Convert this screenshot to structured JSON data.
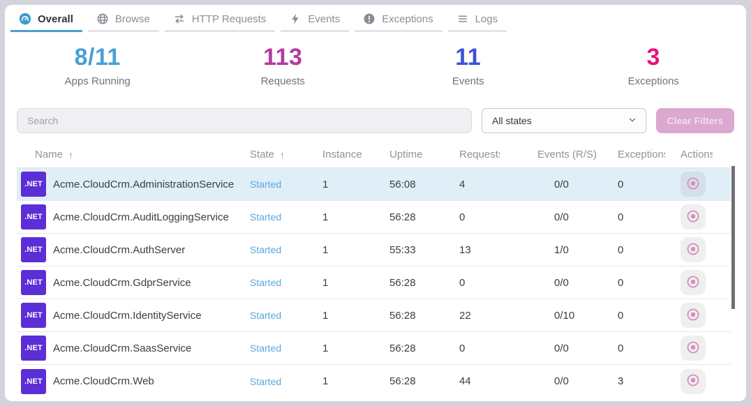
{
  "tabs": [
    {
      "label": "Overall",
      "icon": "gauge-icon",
      "active": true
    },
    {
      "label": "Browse",
      "icon": "globe-icon",
      "active": false
    },
    {
      "label": "HTTP Requests",
      "icon": "swap-arrows-icon",
      "active": false
    },
    {
      "label": "Events",
      "icon": "lightning-icon",
      "active": false
    },
    {
      "label": "Exceptions",
      "icon": "exclamation-circle-icon",
      "active": false
    },
    {
      "label": "Logs",
      "icon": "lines-icon",
      "active": false
    }
  ],
  "stats": [
    {
      "value": "8/11",
      "label": "Apps Running",
      "color": "#4AA0D3"
    },
    {
      "value": "113",
      "label": "Requests",
      "color": "#B13C9E"
    },
    {
      "value": "11",
      "label": "Events",
      "color": "#3D52D8"
    },
    {
      "value": "3",
      "label": "Exceptions",
      "color": "#E7137E"
    }
  ],
  "filters": {
    "search_placeholder": "Search",
    "state_filter_value": "All states",
    "clear_button_label": "Clear Filters"
  },
  "table": {
    "columns": [
      "Name",
      "State",
      "Instance",
      "Uptime",
      "Requests",
      "Events (R/S)",
      "Exceptions",
      "Actions"
    ],
    "sorted_columns": [
      "Name",
      "State"
    ],
    "sort_arrow": "↑",
    "row_action_icon": "stop-icon",
    "rows": [
      {
        "badge": ".NET",
        "name": "Acme.CloudCrm.AdministrationService",
        "state": "Started",
        "instance": "1",
        "uptime": "56:08",
        "requests": "4",
        "events": "0/0",
        "exceptions": "0",
        "highlighted": true
      },
      {
        "badge": ".NET",
        "name": "Acme.CloudCrm.AuditLoggingService",
        "state": "Started",
        "instance": "1",
        "uptime": "56:28",
        "requests": "0",
        "events": "0/0",
        "exceptions": "0",
        "highlighted": false
      },
      {
        "badge": ".NET",
        "name": "Acme.CloudCrm.AuthServer",
        "state": "Started",
        "instance": "1",
        "uptime": "55:33",
        "requests": "13",
        "events": "1/0",
        "exceptions": "0",
        "highlighted": false
      },
      {
        "badge": ".NET",
        "name": "Acme.CloudCrm.GdprService",
        "state": "Started",
        "instance": "1",
        "uptime": "56:28",
        "requests": "0",
        "events": "0/0",
        "exceptions": "0",
        "highlighted": false
      },
      {
        "badge": ".NET",
        "name": "Acme.CloudCrm.IdentityService",
        "state": "Started",
        "instance": "1",
        "uptime": "56:28",
        "requests": "22",
        "events": "0/10",
        "exceptions": "0",
        "highlighted": false
      },
      {
        "badge": ".NET",
        "name": "Acme.CloudCrm.SaasService",
        "state": "Started",
        "instance": "1",
        "uptime": "56:28",
        "requests": "0",
        "events": "0/0",
        "exceptions": "0",
        "highlighted": false
      },
      {
        "badge": ".NET",
        "name": "Acme.CloudCrm.Web",
        "state": "Started",
        "instance": "1",
        "uptime": "56:28",
        "requests": "44",
        "events": "0/0",
        "exceptions": "3",
        "highlighted": false
      }
    ]
  },
  "colors": {
    "accent_blue": "#49A0D3",
    "badge_purple": "#5C2ED6",
    "state_link": "#58A9DC",
    "highlight_row": "#E0EEF7",
    "clear_button_bg": "#DBA8CF",
    "action_pink": "#D58FC1"
  }
}
